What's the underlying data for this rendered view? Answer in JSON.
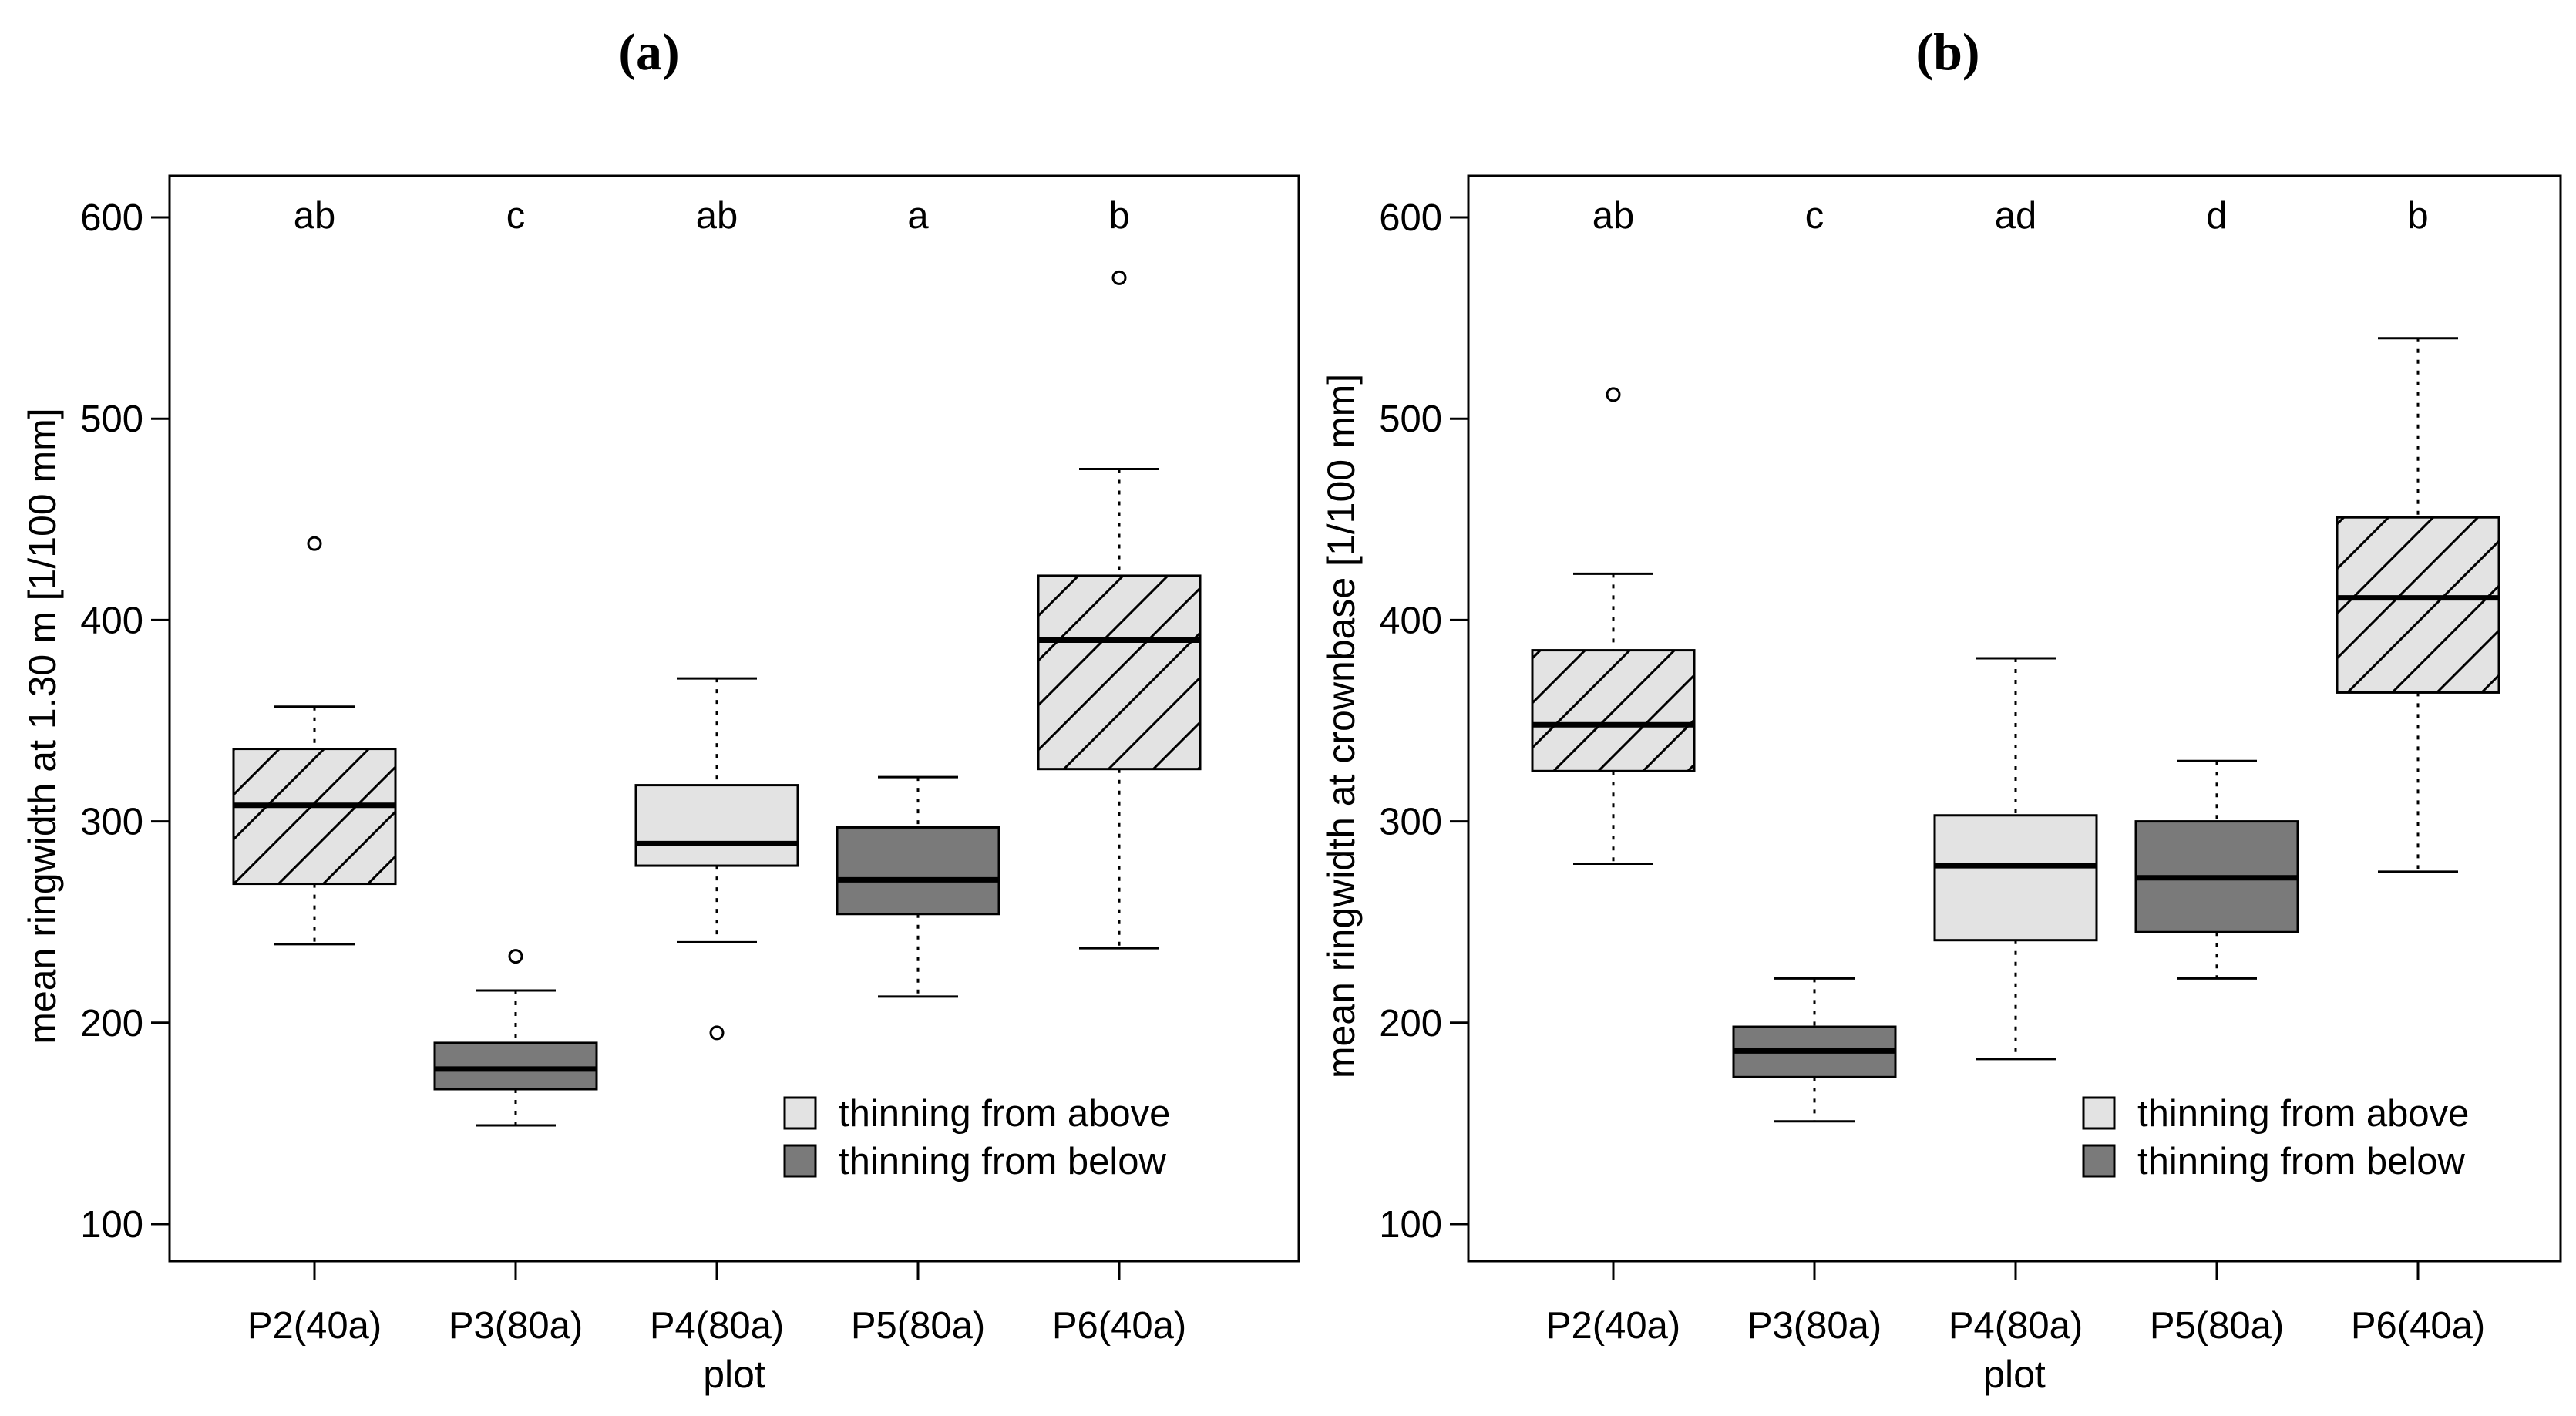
{
  "chart_data": [
    {
      "type": "boxplot",
      "panel_label": "(a)",
      "ylabel": "mean ringwidth at 1.30 m [1/100 mm]",
      "xlabel": "plot",
      "ylim": [
        80,
        600
      ],
      "yticks": [
        100,
        200,
        300,
        400,
        500,
        600
      ],
      "categories": [
        "P2(40a)",
        "P3(80a)",
        "P4(80a)",
        "P5(80a)",
        "P6(40a)"
      ],
      "letters": [
        "ab",
        "c",
        "ab",
        "a",
        "b"
      ],
      "groups": [
        "above",
        "below",
        "above",
        "below",
        "above"
      ],
      "hatched": [
        true,
        false,
        false,
        false,
        true
      ],
      "boxes": [
        {
          "min": 239,
          "q1": 269,
          "median": 308,
          "q3": 336,
          "max": 357,
          "outliers": [
            438
          ]
        },
        {
          "min": 149,
          "q1": 167,
          "median": 177,
          "q3": 190,
          "max": 216,
          "outliers": [
            233
          ]
        },
        {
          "min": 240,
          "q1": 278,
          "median": 289,
          "q3": 318,
          "max": 371,
          "outliers": [
            195
          ]
        },
        {
          "min": 213,
          "q1": 254,
          "median": 271,
          "q3": 297,
          "max": 322,
          "outliers": []
        },
        {
          "min": 237,
          "q1": 326,
          "median": 390,
          "q3": 422,
          "max": 475,
          "outliers": [
            570
          ]
        }
      ],
      "legend": {
        "position": "bottom-right",
        "entries": [
          {
            "label": "thinning from above",
            "color": "#e3e3e3"
          },
          {
            "label": "thinning from below",
            "color": "#7a7a7a"
          }
        ]
      }
    },
    {
      "type": "boxplot",
      "panel_label": "(b)",
      "ylabel": "mean ringwidth at crownbase [1/100 mm]",
      "xlabel": "plot",
      "ylim": [
        80,
        600
      ],
      "yticks": [
        100,
        200,
        300,
        400,
        500,
        600
      ],
      "categories": [
        "P2(40a)",
        "P3(80a)",
        "P4(80a)",
        "P5(80a)",
        "P6(40a)"
      ],
      "letters": [
        "ab",
        "c",
        "ad",
        "d",
        "b"
      ],
      "groups": [
        "above",
        "below",
        "above",
        "below",
        "above"
      ],
      "hatched": [
        true,
        false,
        false,
        false,
        true
      ],
      "boxes": [
        {
          "min": 279,
          "q1": 325,
          "median": 348,
          "q3": 385,
          "max": 423,
          "outliers": [
            512
          ]
        },
        {
          "min": 151,
          "q1": 173,
          "median": 186,
          "q3": 198,
          "max": 222,
          "outliers": []
        },
        {
          "min": 182,
          "q1": 241,
          "median": 278,
          "q3": 303,
          "max": 381,
          "outliers": []
        },
        {
          "min": 222,
          "q1": 245,
          "median": 272,
          "q3": 300,
          "max": 330,
          "outliers": []
        },
        {
          "min": 275,
          "q1": 364,
          "median": 411,
          "q3": 451,
          "max": 540,
          "outliers": []
        }
      ],
      "legend": {
        "position": "bottom-right",
        "entries": [
          {
            "label": "thinning from above",
            "color": "#e3e3e3"
          },
          {
            "label": "thinning from below",
            "color": "#7a7a7a"
          }
        ]
      }
    }
  ]
}
